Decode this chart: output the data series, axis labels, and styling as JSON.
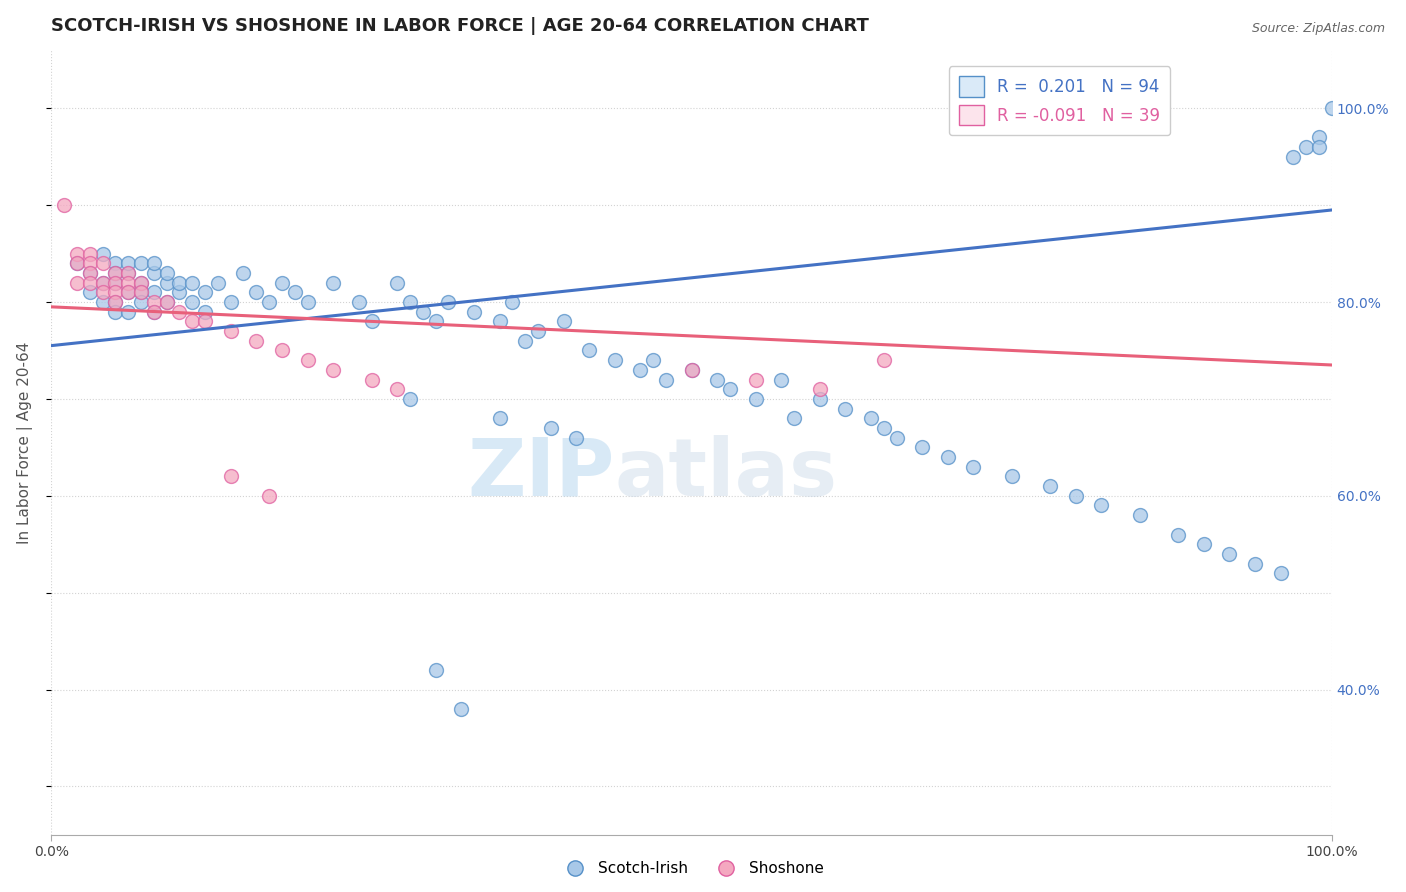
{
  "title": "SCOTCH-IRISH VS SHOSHONE IN LABOR FORCE | AGE 20-64 CORRELATION CHART",
  "source": "Source: ZipAtlas.com",
  "ylabel": "In Labor Force | Age 20-64",
  "xlim": [
    0,
    1
  ],
  "ylim": [
    0.25,
    1.06
  ],
  "right_yticks": [
    0.4,
    0.6,
    0.8,
    1.0
  ],
  "right_ytick_labels": [
    "40.0%",
    "60.0%",
    "80.0%",
    "100.0%"
  ],
  "xtick_labels": [
    "0.0%",
    "100.0%"
  ],
  "xtick_vals": [
    0.0,
    1.0
  ],
  "scotch_irish_R": 0.201,
  "scotch_irish_N": 94,
  "shoshone_R": -0.091,
  "shoshone_N": 39,
  "blue_color": "#a8c8e8",
  "pink_color": "#f4a8c0",
  "blue_edge_color": "#5590c8",
  "pink_edge_color": "#e060a0",
  "blue_line_color": "#4472c4",
  "pink_line_color": "#e8607a",
  "legend_blue_fill": "#daeaf8",
  "legend_pink_fill": "#fce4ec",
  "scotch_irish_x": [
    0.02,
    0.03,
    0.03,
    0.04,
    0.04,
    0.04,
    0.05,
    0.05,
    0.05,
    0.05,
    0.05,
    0.06,
    0.06,
    0.06,
    0.06,
    0.07,
    0.07,
    0.07,
    0.07,
    0.08,
    0.08,
    0.08,
    0.08,
    0.09,
    0.09,
    0.09,
    0.1,
    0.1,
    0.11,
    0.11,
    0.12,
    0.12,
    0.13,
    0.14,
    0.15,
    0.16,
    0.17,
    0.18,
    0.19,
    0.2,
    0.22,
    0.24,
    0.25,
    0.27,
    0.28,
    0.29,
    0.3,
    0.31,
    0.33,
    0.35,
    0.36,
    0.37,
    0.38,
    0.4,
    0.42,
    0.44,
    0.46,
    0.47,
    0.48,
    0.5,
    0.52,
    0.53,
    0.55,
    0.57,
    0.58,
    0.6,
    0.62,
    0.64,
    0.65,
    0.66,
    0.68,
    0.7,
    0.72,
    0.75,
    0.78,
    0.8,
    0.82,
    0.85,
    0.88,
    0.9,
    0.92,
    0.94,
    0.96,
    0.97,
    0.98,
    0.99,
    0.99,
    1.0,
    0.28,
    0.35,
    0.39,
    0.41,
    0.3,
    0.32
  ],
  "scotch_irish_y": [
    0.84,
    0.83,
    0.81,
    0.85,
    0.82,
    0.8,
    0.84,
    0.82,
    0.8,
    0.79,
    0.83,
    0.83,
    0.81,
    0.84,
    0.79,
    0.82,
    0.84,
    0.81,
    0.8,
    0.83,
    0.81,
    0.79,
    0.84,
    0.82,
    0.8,
    0.83,
    0.81,
    0.82,
    0.8,
    0.82,
    0.81,
    0.79,
    0.82,
    0.8,
    0.83,
    0.81,
    0.8,
    0.82,
    0.81,
    0.8,
    0.82,
    0.8,
    0.78,
    0.82,
    0.8,
    0.79,
    0.78,
    0.8,
    0.79,
    0.78,
    0.8,
    0.76,
    0.77,
    0.78,
    0.75,
    0.74,
    0.73,
    0.74,
    0.72,
    0.73,
    0.72,
    0.71,
    0.7,
    0.72,
    0.68,
    0.7,
    0.69,
    0.68,
    0.67,
    0.66,
    0.65,
    0.64,
    0.63,
    0.62,
    0.61,
    0.6,
    0.59,
    0.58,
    0.56,
    0.55,
    0.54,
    0.53,
    0.52,
    0.95,
    0.96,
    0.97,
    0.96,
    1.0,
    0.7,
    0.68,
    0.67,
    0.66,
    0.42,
    0.38
  ],
  "shoshone_x": [
    0.01,
    0.02,
    0.02,
    0.02,
    0.03,
    0.03,
    0.03,
    0.03,
    0.04,
    0.04,
    0.04,
    0.05,
    0.05,
    0.05,
    0.05,
    0.06,
    0.06,
    0.06,
    0.07,
    0.07,
    0.08,
    0.08,
    0.09,
    0.1,
    0.11,
    0.12,
    0.14,
    0.16,
    0.18,
    0.2,
    0.22,
    0.25,
    0.27,
    0.5,
    0.55,
    0.6,
    0.65,
    0.14,
    0.17
  ],
  "shoshone_y": [
    0.9,
    0.85,
    0.84,
    0.82,
    0.85,
    0.84,
    0.83,
    0.82,
    0.84,
    0.82,
    0.81,
    0.83,
    0.82,
    0.81,
    0.8,
    0.83,
    0.82,
    0.81,
    0.82,
    0.81,
    0.8,
    0.79,
    0.8,
    0.79,
    0.78,
    0.78,
    0.77,
    0.76,
    0.75,
    0.74,
    0.73,
    0.72,
    0.71,
    0.73,
    0.72,
    0.71,
    0.74,
    0.62,
    0.6
  ],
  "trendline_blue_x0": 0.0,
  "trendline_blue_y0": 0.755,
  "trendline_blue_x1": 1.0,
  "trendline_blue_y1": 0.895,
  "trendline_pink_x0": 0.0,
  "trendline_pink_y0": 0.795,
  "trendline_pink_x1": 1.0,
  "trendline_pink_y1": 0.735,
  "watermark_zip": "ZIP",
  "watermark_atlas": "atlas",
  "title_fontsize": 13,
  "label_fontsize": 11,
  "tick_fontsize": 10,
  "marker_size": 100,
  "marker_linewidth": 1.0,
  "background_color": "#ffffff",
  "grid_color": "#c8c8c8",
  "grid_alpha": 0.8,
  "grid_linestyle": ":"
}
